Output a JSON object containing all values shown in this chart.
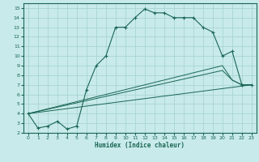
{
  "title": "",
  "xlabel": "Humidex (Indice chaleur)",
  "bg_color": "#c8eaea",
  "grid_color": "#aad4d4",
  "line_color": "#1a6655",
  "xlim": [
    -0.5,
    23.5
  ],
  "ylim": [
    2,
    15.5
  ],
  "xticks": [
    0,
    1,
    2,
    3,
    4,
    5,
    6,
    7,
    8,
    9,
    10,
    11,
    12,
    13,
    14,
    15,
    16,
    17,
    18,
    19,
    20,
    21,
    22,
    23
  ],
  "yticks": [
    2,
    3,
    4,
    5,
    6,
    7,
    8,
    9,
    10,
    11,
    12,
    13,
    14,
    15
  ],
  "series_main": {
    "x": [
      0,
      1,
      2,
      3,
      4,
      5,
      6,
      7,
      8,
      9,
      10,
      11,
      12,
      13,
      14,
      15,
      16,
      17,
      18,
      19,
      20,
      21,
      22,
      23
    ],
    "y": [
      4,
      2.5,
      2.7,
      3.2,
      2.4,
      2.7,
      6.5,
      9.0,
      10.0,
      13.0,
      13.0,
      14.0,
      14.9,
      14.5,
      14.5,
      14.0,
      14.0,
      14.0,
      13.0,
      12.5,
      10.0,
      10.5,
      7.0,
      7.0
    ]
  },
  "series_lines": [
    {
      "x": [
        0,
        23
      ],
      "y": [
        4,
        7.0
      ]
    },
    {
      "x": [
        0,
        20,
        21,
        22,
        23
      ],
      "y": [
        4,
        8.5,
        7.5,
        7.0,
        7.0
      ]
    },
    {
      "x": [
        0,
        20,
        21,
        22,
        23
      ],
      "y": [
        4,
        9.0,
        7.5,
        7.0,
        7.0
      ]
    }
  ]
}
